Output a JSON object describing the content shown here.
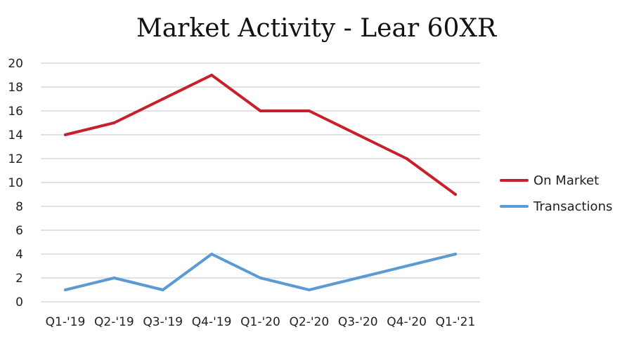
{
  "chart_data": {
    "type": "line",
    "title": "Market Activity - Lear 60XR",
    "categories": [
      "Q1-'19",
      "Q2-'19",
      "Q3-'19",
      "Q4-'19",
      "Q1-'20",
      "Q2-'20",
      "Q3-'20",
      "Q4-'20",
      "Q1-'21"
    ],
    "series": [
      {
        "name": "On Market",
        "color": "#c8202b",
        "values": [
          14,
          15,
          17,
          19,
          16,
          16,
          14,
          12,
          9
        ]
      },
      {
        "name": "Transactions",
        "color": "#5b9bd5",
        "values": [
          1,
          2,
          1,
          4,
          2,
          1,
          2,
          3,
          4
        ]
      }
    ],
    "yticks": [
      0,
      2,
      4,
      6,
      8,
      10,
      12,
      14,
      16,
      18,
      20
    ],
    "ylim": [
      0,
      20
    ],
    "xlabel": "",
    "ylabel": "",
    "grid": true,
    "legend": "right"
  }
}
